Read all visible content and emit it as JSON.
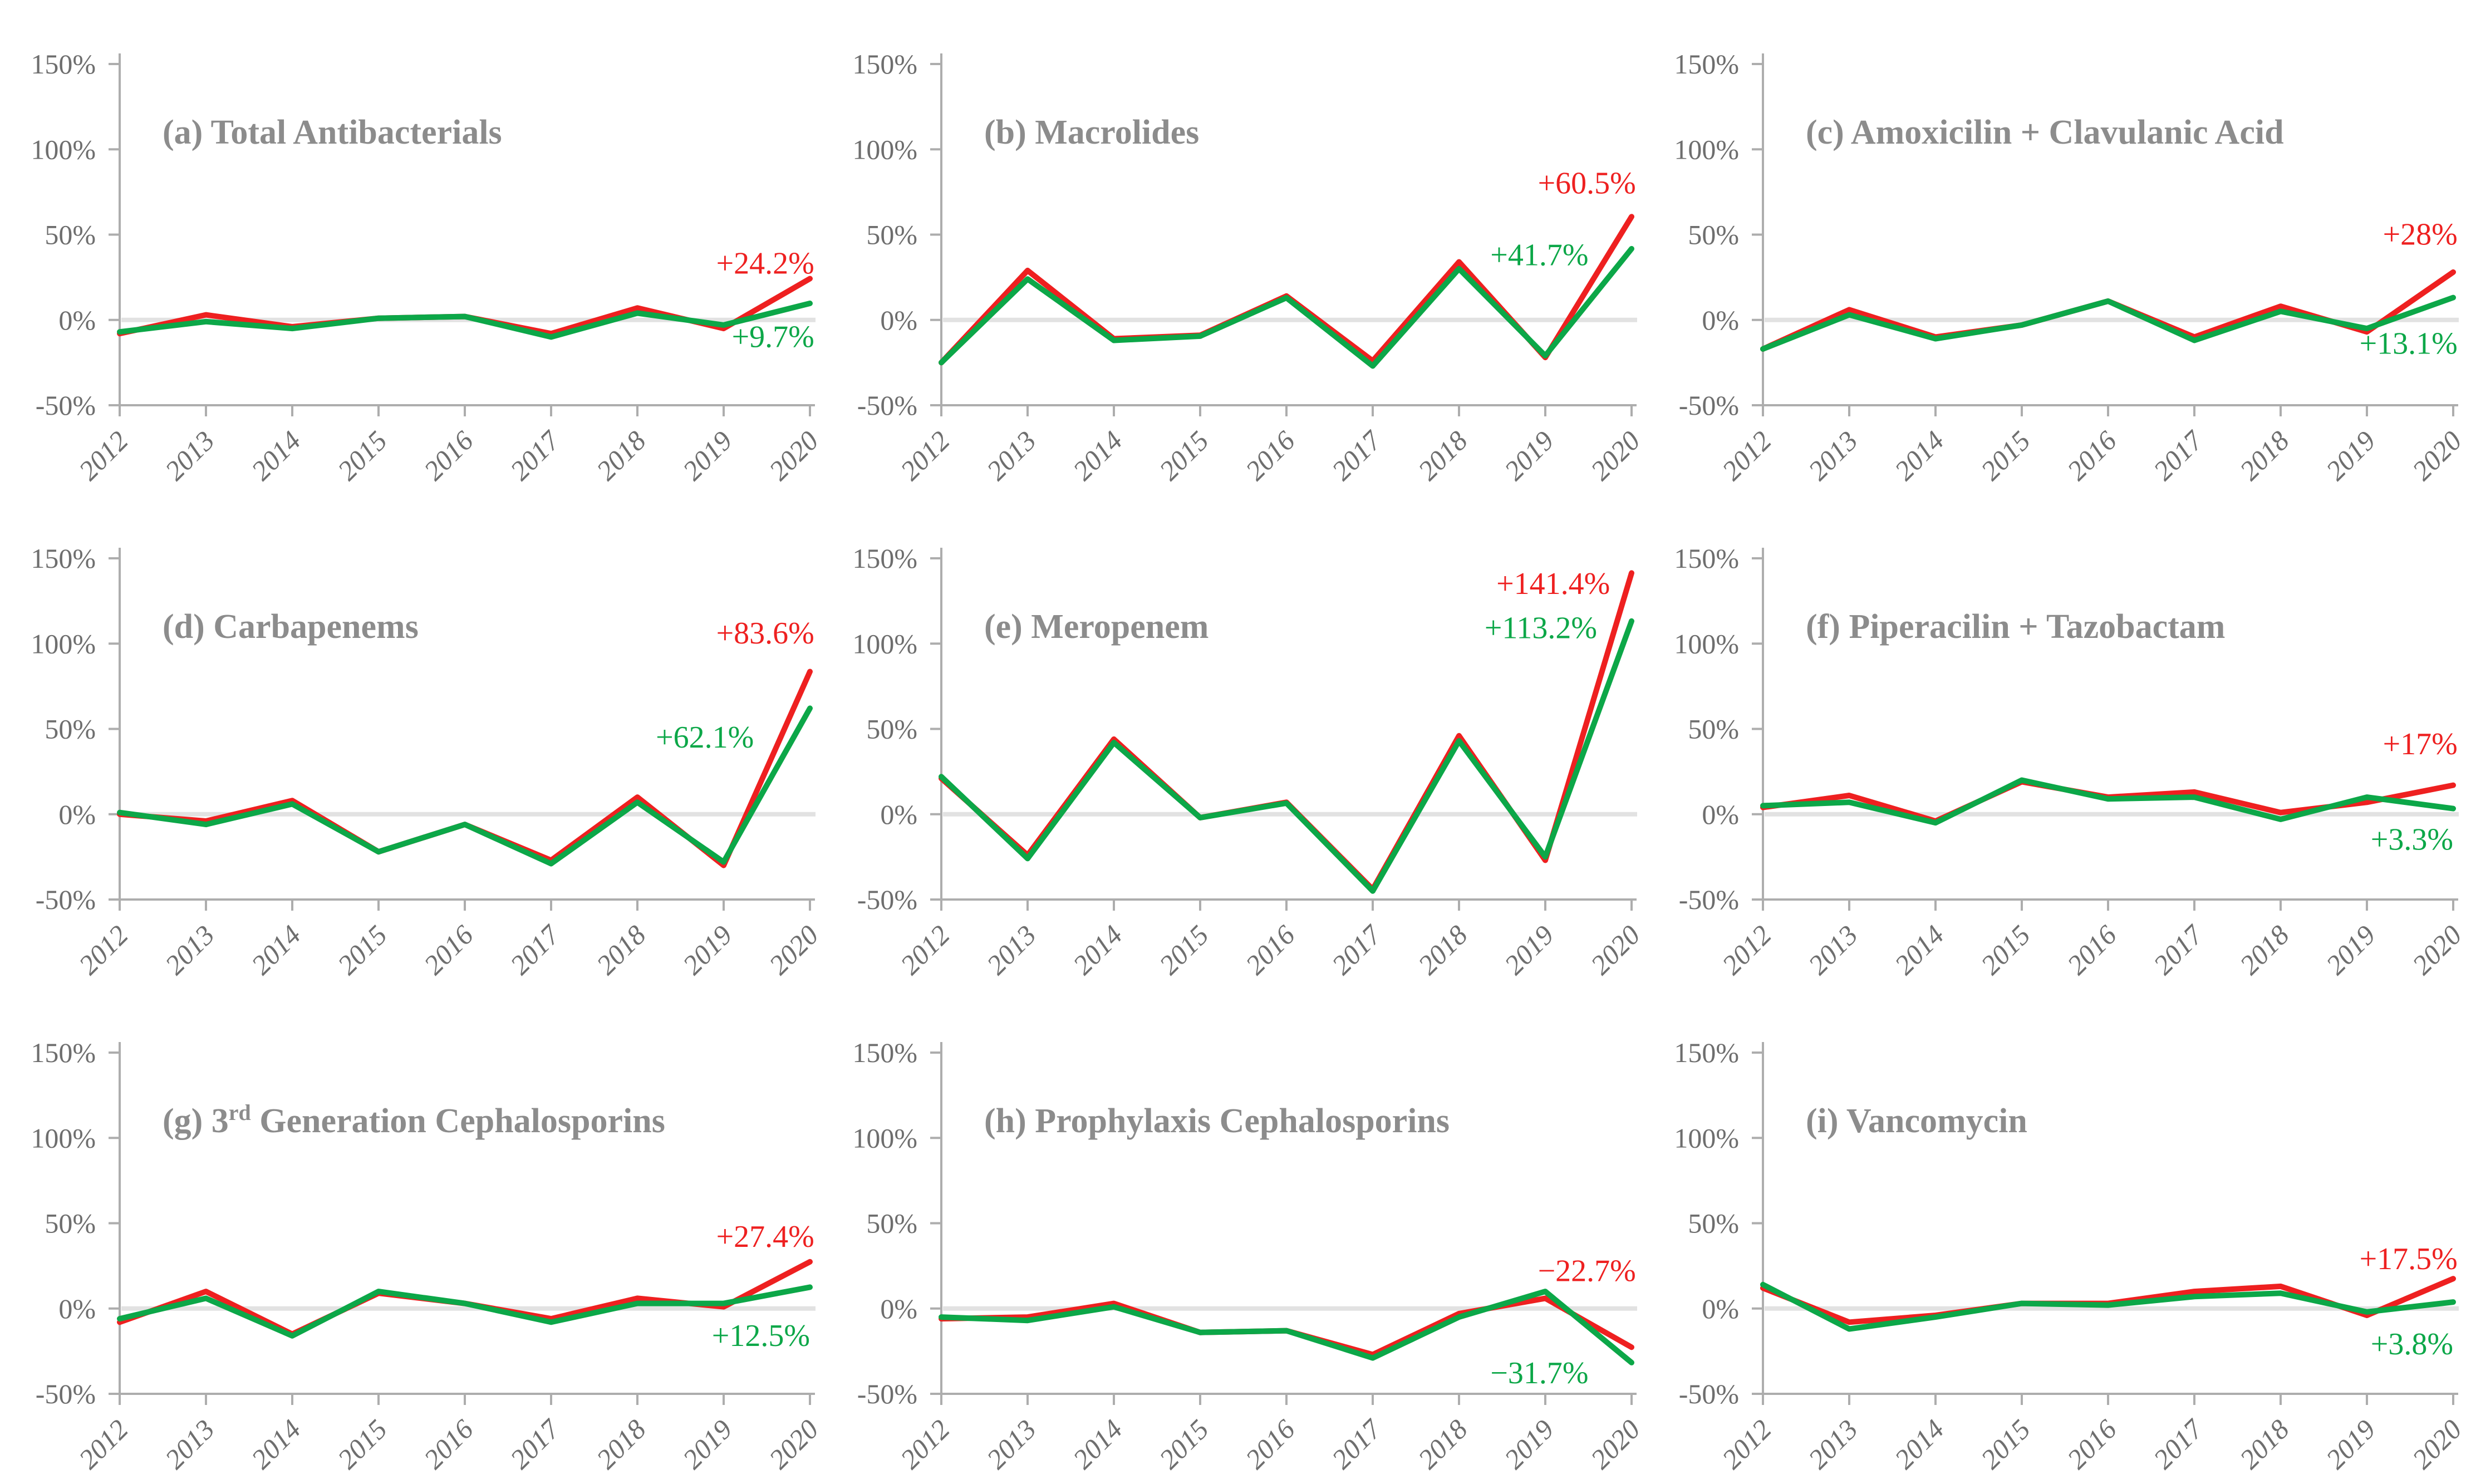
{
  "figure": {
    "background": "#FFFFFF",
    "colors": {
      "red": "#EE2020",
      "green": "#0CA748",
      "axis": "#ADADAD",
      "zero_line": "#E2E2E2",
      "tick_text": "#6E6E6E",
      "title_text": "#8C8C8C"
    },
    "ylim": [
      -50,
      150
    ],
    "y_ticks": [
      {
        "label": "150%",
        "value": 150
      },
      {
        "label": "100%",
        "value": 100
      },
      {
        "label": "50%",
        "value": 50
      },
      {
        "label": "0%",
        "value": 0
      },
      {
        "label": "-50%",
        "value": -50
      }
    ]
  },
  "chart_data": [
    {
      "type": "line",
      "panel": "a",
      "title": "(a) Total Antibacterials",
      "title_runs": [
        {
          "t": "(a) Total Antibacterials"
        }
      ],
      "categories": [
        "2012",
        "2013",
        "2014",
        "2015",
        "2016",
        "2017",
        "2018",
        "2019",
        "2020"
      ],
      "ylim": [
        -50,
        150
      ],
      "series": [
        {
          "name": "red",
          "color_key": "red",
          "values": [
            -8,
            3,
            -4,
            1,
            2,
            -8,
            7,
            -5,
            24.2
          ],
          "end_label": "+24.2%",
          "label_x": 8.05,
          "label_y": 33
        },
        {
          "name": "green",
          "color_key": "green",
          "values": [
            -7,
            -1,
            -5,
            1,
            2,
            -10,
            4,
            -3,
            9.7
          ],
          "end_label": "+9.7%",
          "label_x": 8.05,
          "label_y": -10
        }
      ]
    },
    {
      "type": "line",
      "panel": "b",
      "title": "(b) Macrolides",
      "title_runs": [
        {
          "t": "(b) Macrolides"
        }
      ],
      "categories": [
        "2012",
        "2013",
        "2014",
        "2015",
        "2016",
        "2017",
        "2018",
        "2019",
        "2020"
      ],
      "ylim": [
        -50,
        150
      ],
      "series": [
        {
          "name": "red",
          "color_key": "red",
          "values": [
            -25,
            29,
            -11,
            -9,
            14,
            -24,
            34,
            -22,
            60.5
          ],
          "end_label": "+60.5%",
          "label_x": 8.05,
          "label_y": 80
        },
        {
          "name": "green",
          "color_key": "green",
          "values": [
            -25,
            24,
            -12,
            -9.5,
            13,
            -27,
            30,
            -21,
            41.7
          ],
          "end_label": "+41.7%",
          "label_x": 7.5,
          "label_y": 38
        }
      ]
    },
    {
      "type": "line",
      "panel": "c",
      "title": "(c) Amoxicilin + Clavulanic Acid",
      "title_runs": [
        {
          "t": "(c) Amoxicilin + Clavulanic Acid"
        }
      ],
      "categories": [
        "2012",
        "2013",
        "2014",
        "2015",
        "2016",
        "2017",
        "2018",
        "2019",
        "2020"
      ],
      "ylim": [
        -50,
        150
      ],
      "series": [
        {
          "name": "red",
          "color_key": "red",
          "values": [
            -17,
            6,
            -10,
            -3,
            11,
            -10,
            8,
            -7,
            28
          ],
          "end_label": "+28%",
          "label_x": 8.05,
          "label_y": 50
        },
        {
          "name": "green",
          "color_key": "green",
          "values": [
            -17,
            3,
            -11,
            -3,
            11,
            -12,
            5,
            -5,
            13.1
          ],
          "end_label": "+13.1%",
          "label_x": 8.05,
          "label_y": -14
        }
      ]
    },
    {
      "type": "line",
      "panel": "d",
      "title": "(d) Carbapenems",
      "title_runs": [
        {
          "t": "(d) Carbapenems"
        }
      ],
      "categories": [
        "2012",
        "2013",
        "2014",
        "2015",
        "2016",
        "2017",
        "2018",
        "2019",
        "2020"
      ],
      "ylim": [
        -50,
        150
      ],
      "series": [
        {
          "name": "red",
          "color_key": "red",
          "values": [
            0,
            -4,
            8,
            -22,
            -6,
            -27,
            10,
            -30,
            83.6
          ],
          "end_label": "+83.6%",
          "label_x": 8.05,
          "label_y": 106
        },
        {
          "name": "green",
          "color_key": "green",
          "values": [
            1,
            -6,
            6,
            -22,
            -6,
            -29,
            7,
            -28,
            62.1
          ],
          "end_label": "+62.1%",
          "label_x": 7.35,
          "label_y": 45
        }
      ]
    },
    {
      "type": "line",
      "panel": "e",
      "title": "(e) Meropenem",
      "title_runs": [
        {
          "t": "(e) Meropenem"
        }
      ],
      "categories": [
        "2012",
        "2013",
        "2014",
        "2015",
        "2016",
        "2017",
        "2018",
        "2019",
        "2020"
      ],
      "ylim": [
        -50,
        150
      ],
      "series": [
        {
          "name": "red",
          "color_key": "red",
          "values": [
            21,
            -24,
            44,
            -2,
            7,
            -44,
            46,
            -27,
            141.4
          ],
          "end_label": "+141.4%",
          "label_x": 7.75,
          "label_y": 135
        },
        {
          "name": "green",
          "color_key": "green",
          "values": [
            22,
            -26,
            42,
            -2,
            6.5,
            -45,
            43,
            -25,
            113.2
          ],
          "end_label": "+113.2%",
          "label_x": 7.6,
          "label_y": 109
        }
      ]
    },
    {
      "type": "line",
      "panel": "f",
      "title": "(f) Piperacilin + Tazobactam",
      "title_runs": [
        {
          "t": "(f) Piperacilin + Tazobactam"
        }
      ],
      "categories": [
        "2012",
        "2013",
        "2014",
        "2015",
        "2016",
        "2017",
        "2018",
        "2019",
        "2020"
      ],
      "ylim": [
        -50,
        150
      ],
      "series": [
        {
          "name": "red",
          "color_key": "red",
          "values": [
            4,
            11,
            -4,
            19,
            10,
            13,
            1,
            7,
            17
          ],
          "end_label": "+17%",
          "label_x": 8.05,
          "label_y": 41
        },
        {
          "name": "green",
          "color_key": "green",
          "values": [
            5,
            7,
            -5,
            20,
            9,
            10,
            -3,
            10,
            3.3
          ],
          "end_label": "+3.3%",
          "label_x": 8.0,
          "label_y": -15
        }
      ]
    },
    {
      "type": "line",
      "panel": "g",
      "title": "(g) 3rd Generation Cephalosporins",
      "title_runs": [
        {
          "t": "(g) 3"
        },
        {
          "t": "rd",
          "sup": true
        },
        {
          "t": " Generation Cephalosporins"
        }
      ],
      "categories": [
        "2012",
        "2013",
        "2014",
        "2015",
        "2016",
        "2017",
        "2018",
        "2019",
        "2020"
      ],
      "ylim": [
        -50,
        150
      ],
      "series": [
        {
          "name": "red",
          "color_key": "red",
          "values": [
            -8,
            10,
            -15,
            9,
            3,
            -6,
            6,
            1,
            27.4
          ],
          "end_label": "+27.4%",
          "label_x": 8.05,
          "label_y": 42
        },
        {
          "name": "green",
          "color_key": "green",
          "values": [
            -6,
            6,
            -16,
            10,
            3,
            -8,
            3,
            3,
            12.5
          ],
          "end_label": "+12.5%",
          "label_x": 8.0,
          "label_y": -16
        }
      ]
    },
    {
      "type": "line",
      "panel": "h",
      "title": "(h) Prophylaxis Cephalosporins",
      "title_runs": [
        {
          "t": "(h) Prophylaxis Cephalosporins"
        }
      ],
      "categories": [
        "2012",
        "2013",
        "2014",
        "2015",
        "2016",
        "2017",
        "2018",
        "2019",
        "2020"
      ],
      "ylim": [
        -50,
        150
      ],
      "series": [
        {
          "name": "red",
          "color_key": "red",
          "values": [
            -6,
            -5,
            3,
            -14,
            -13,
            -27,
            -3,
            6,
            -22.7
          ],
          "end_label": "−22.7%",
          "label_x": 8.05,
          "label_y": 22
        },
        {
          "name": "green",
          "color_key": "green",
          "values": [
            -5,
            -7,
            1,
            -14,
            -13,
            -29,
            -5,
            10,
            -31.7
          ],
          "end_label": "−31.7%",
          "label_x": 7.5,
          "label_y": -38
        }
      ]
    },
    {
      "type": "line",
      "panel": "i",
      "title": "(i) Vancomycin",
      "title_runs": [
        {
          "t": "(i) Vancomycin"
        }
      ],
      "categories": [
        "2012",
        "2013",
        "2014",
        "2015",
        "2016",
        "2017",
        "2018",
        "2019",
        "2020"
      ],
      "ylim": [
        -50,
        150
      ],
      "series": [
        {
          "name": "red",
          "color_key": "red",
          "values": [
            12,
            -8,
            -4,
            3,
            3,
            10,
            13,
            -4,
            17.5
          ],
          "end_label": "+17.5%",
          "label_x": 8.05,
          "label_y": 29
        },
        {
          "name": "green",
          "color_key": "green",
          "values": [
            14,
            -12,
            -5,
            3,
            2,
            7,
            9,
            -2,
            3.8
          ],
          "end_label": "+3.8%",
          "label_x": 8.0,
          "label_y": -21
        }
      ]
    }
  ]
}
